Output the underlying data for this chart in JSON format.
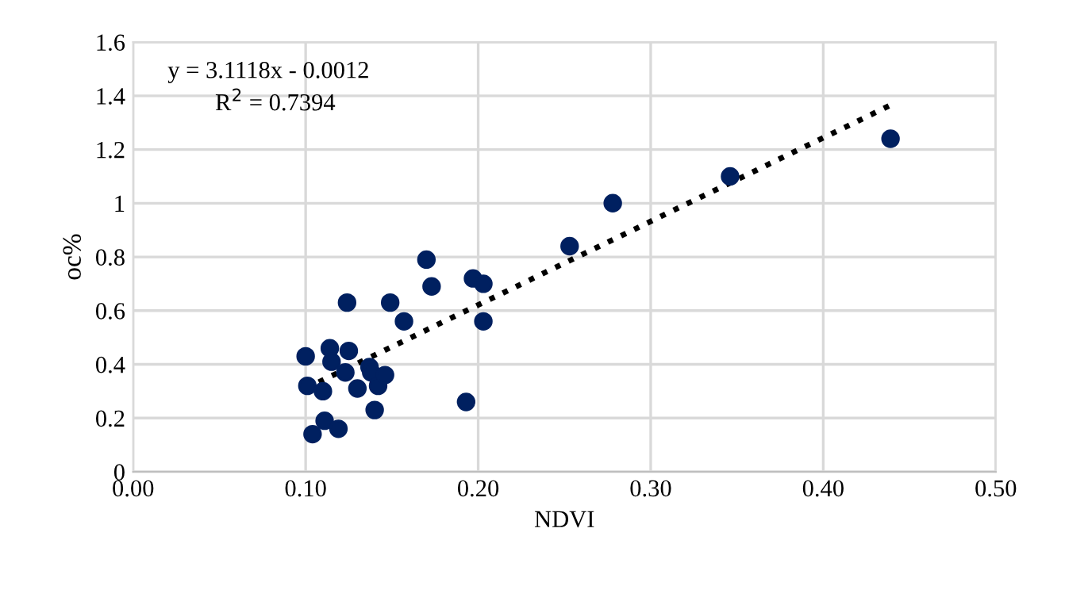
{
  "chart_data": {
    "type": "scatter",
    "xlabel": "NDVI",
    "ylabel": "oc%",
    "annotations": [
      "y = 3.1118x - 0.0012",
      "R$^{2}$ = 0.7394"
    ],
    "xlim": [
      0,
      0.5
    ],
    "ylim": [
      0,
      1.6
    ],
    "xticks": [
      {
        "value": 0,
        "label": "0.00"
      },
      {
        "value": 0.1,
        "label": "0.10"
      },
      {
        "value": 0.2,
        "label": "0.20"
      },
      {
        "value": 0.3,
        "label": "0.30"
      },
      {
        "value": 0.4,
        "label": "0.40"
      },
      {
        "value": 0.5,
        "label": "0.50"
      }
    ],
    "yticks": [
      0,
      0.2,
      0.4,
      0.6,
      0.8,
      1,
      1.2,
      1.4,
      1.6
    ],
    "grid": true,
    "legend": false,
    "series": [
      {
        "color": "#002060",
        "marker": "circle",
        "x": [
          0.1,
          0.101,
          0.104,
          0.11,
          0.111,
          0.114,
          0.115,
          0.119,
          0.124,
          0.123,
          0.125,
          0.13,
          0.137,
          0.138,
          0.14,
          0.142,
          0.146,
          0.149,
          0.157,
          0.17,
          0.173,
          0.193,
          0.197,
          0.203,
          0.203,
          0.253,
          0.278,
          0.346,
          0.439
        ],
        "values": [
          0.43,
          0.32,
          0.14,
          0.3,
          0.19,
          0.46,
          0.41,
          0.16,
          0.63,
          0.37,
          0.45,
          0.31,
          0.39,
          0.37,
          0.23,
          0.32,
          0.36,
          0.63,
          0.56,
          0.79,
          0.69,
          0.26,
          0.72,
          0.7,
          0.56,
          0.84,
          1.0,
          1.1,
          1.24
        ]
      },
      {
        "type": "line",
        "color": "#000000",
        "line_style": "dotted",
        "x": [
          0.1,
          0.439
        ],
        "values": [
          0.31,
          1.365
        ]
      }
    ]
  }
}
